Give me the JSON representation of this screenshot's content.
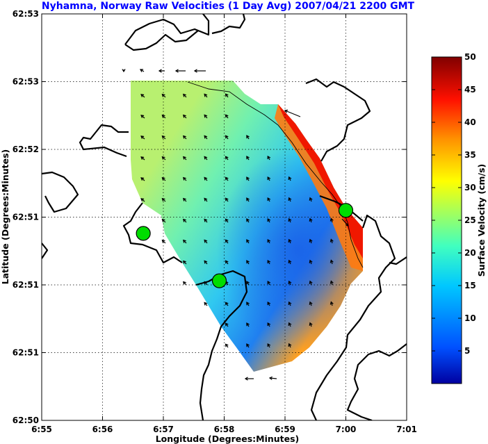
{
  "chart_data": {
    "type": "heatmap",
    "title": "Nyhamna, Norway Raw Velocities (1 Day Avg) 2007/04/21 2200 GMT",
    "xlabel": "Longitude (Degrees:Minutes)",
    "ylabel": "Latitude (Degrees:Minutes)",
    "x_tick_labels": [
      "6:55",
      "6:56",
      "6:57",
      "6:58",
      "6:59",
      "7:00",
      "7:01"
    ],
    "x_ticks": [
      55,
      56,
      57,
      58,
      59,
      60,
      61
    ],
    "y_tick_labels": [
      "62:50",
      "62:51",
      "62:51",
      "62:51",
      "62:52",
      "62:53",
      "62:53"
    ],
    "y_ticks": [
      0,
      1,
      2,
      3,
      4,
      5,
      6
    ],
    "xlim": [
      55,
      61
    ],
    "ylim": [
      0,
      6
    ],
    "grid": true,
    "colorbar": {
      "label": "Surface Velocity (cm/s)",
      "tick_labels": [
        "5",
        "10",
        "15",
        "20",
        "25",
        "30",
        "35",
        "40",
        "45",
        "50"
      ],
      "range": [
        0,
        50
      ],
      "colormap": "jet"
    },
    "site_markers": [
      {
        "x": 56.67,
        "y": 2.76
      },
      {
        "x": 57.92,
        "y": 2.06
      },
      {
        "x": 60.0,
        "y": 3.1
      }
    ],
    "marker_color": "#00dd00"
  }
}
